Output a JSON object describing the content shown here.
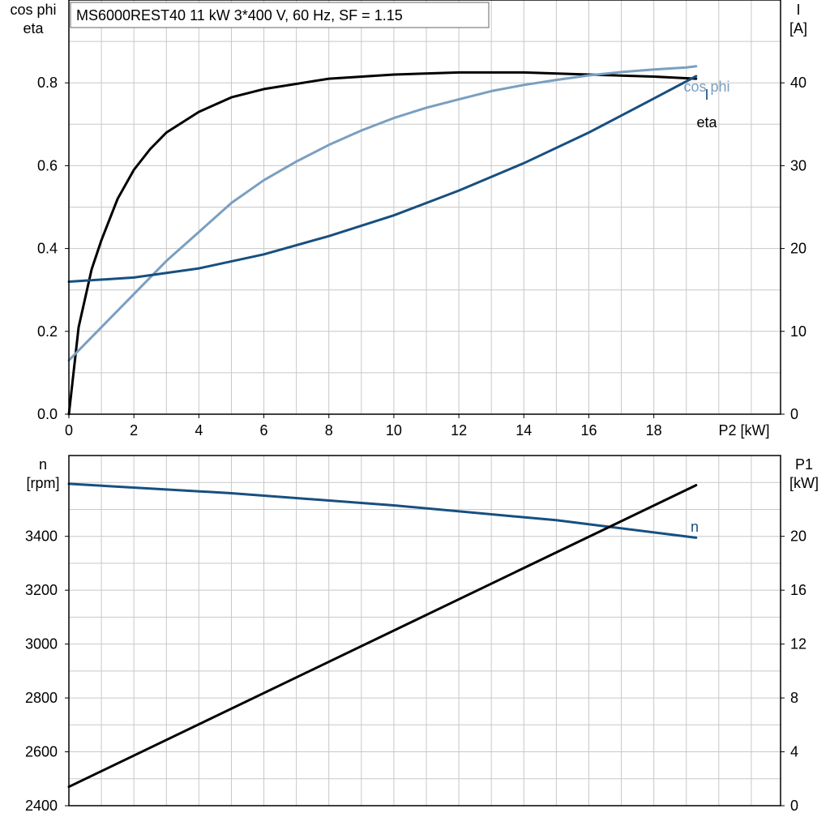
{
  "title": "MS6000REST40   11 kW   3*400 V, 60 Hz, SF = 1.15",
  "chart_data": [
    {
      "type": "line",
      "panel": "top",
      "title": "MS6000REST40   11 kW   3*400 V, 60 Hz, SF = 1.15",
      "xlabel": "P2 [kW]",
      "ylabel_left": [
        "cos phi",
        "eta"
      ],
      "ylabel_right": [
        "I",
        "[A]"
      ],
      "xlim": [
        0,
        21.9
      ],
      "ylim_left": [
        0,
        1.0
      ],
      "ylim_right": [
        0,
        50
      ],
      "x_ticks": [
        "0",
        "2",
        "4",
        "6",
        "8",
        "10",
        "12",
        "14",
        "16",
        "18"
      ],
      "y_ticks_left": [
        "0.0",
        "0.2",
        "0.4",
        "0.6",
        "0.8"
      ],
      "y_ticks_right": [
        "0",
        "10",
        "20",
        "30",
        "40"
      ],
      "grid": true,
      "series": [
        {
          "name": "eta",
          "axis": "left",
          "color": "#000000",
          "x": [
            0,
            0.3,
            0.7,
            1.0,
            1.5,
            2.0,
            2.5,
            3.0,
            4.0,
            5.0,
            6.0,
            8.0,
            10.0,
            12.0,
            14.0,
            16.0,
            18.0,
            19.3
          ],
          "y": [
            0.0,
            0.21,
            0.35,
            0.42,
            0.52,
            0.59,
            0.64,
            0.68,
            0.73,
            0.765,
            0.785,
            0.81,
            0.82,
            0.825,
            0.825,
            0.82,
            0.815,
            0.81
          ]
        },
        {
          "name": "cos phi",
          "axis": "left",
          "color": "#7a9fc0",
          "x": [
            0,
            1,
            2,
            3,
            4,
            5,
            6,
            7,
            8,
            9,
            10,
            11,
            12,
            13,
            14,
            15,
            16,
            17,
            18,
            19,
            19.3
          ],
          "y": [
            0.13,
            0.21,
            0.29,
            0.37,
            0.44,
            0.51,
            0.565,
            0.61,
            0.65,
            0.685,
            0.715,
            0.74,
            0.76,
            0.78,
            0.795,
            0.807,
            0.818,
            0.826,
            0.832,
            0.837,
            0.84
          ]
        },
        {
          "name": "I",
          "axis": "right",
          "color": "#174f80",
          "x": [
            0,
            2,
            4,
            6,
            8,
            10,
            12,
            14,
            16,
            18,
            19.3
          ],
          "y": [
            16.0,
            16.5,
            17.6,
            19.3,
            21.5,
            24.0,
            27.0,
            30.3,
            34.0,
            38.1,
            40.8
          ]
        }
      ]
    },
    {
      "type": "line",
      "panel": "bottom",
      "ylabel_left": [
        "n",
        "[rpm]"
      ],
      "ylabel_right": [
        "P1",
        "[kW]"
      ],
      "xlim": [
        0,
        21.9
      ],
      "ylim_left": [
        2400,
        3700
      ],
      "ylim_right": [
        0,
        26
      ],
      "y_ticks_left": [
        "2400",
        "2600",
        "2800",
        "3000",
        "3200",
        "3400"
      ],
      "y_ticks_right": [
        "0",
        "4",
        "8",
        "12",
        "16",
        "20"
      ],
      "grid": true,
      "series": [
        {
          "name": "n",
          "axis": "left",
          "color": "#174f80",
          "x": [
            0,
            5,
            10,
            15,
            19.3
          ],
          "y": [
            3595,
            3560,
            3515,
            3460,
            3395
          ]
        },
        {
          "name": "P1",
          "axis": "right",
          "color": "#000000",
          "x": [
            0,
            19.3
          ],
          "y": [
            1.4,
            23.8
          ]
        }
      ]
    }
  ]
}
